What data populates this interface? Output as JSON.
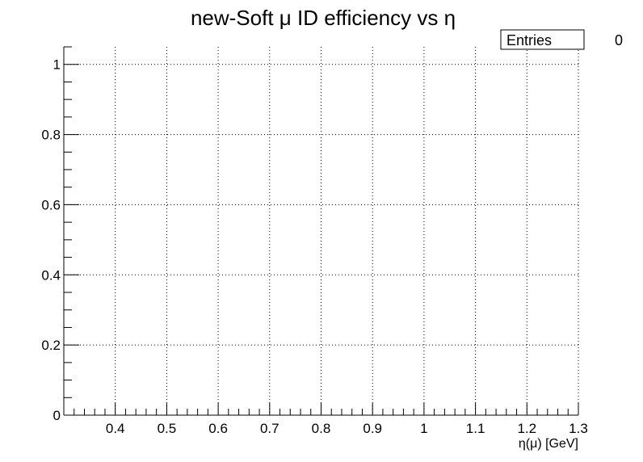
{
  "chart_data": {
    "type": "scatter",
    "title": "new-Soft μ ID efficiency vs η",
    "xlabel": "η(μ) [GeV]",
    "ylabel": "",
    "xlim": [
      0.3,
      1.3
    ],
    "ylim": [
      0,
      1.05
    ],
    "x_ticks": [
      "0.4",
      "0.5",
      "0.6",
      "0.7",
      "0.8",
      "0.9",
      "1",
      "1.1",
      "1.2",
      "1.3"
    ],
    "y_ticks": [
      "0",
      "0.2",
      "0.4",
      "0.6",
      "0.8",
      "1"
    ],
    "grid": true,
    "points": [],
    "stats_box": {
      "label": "Entries",
      "value": "0",
      "position": "top-right"
    }
  }
}
